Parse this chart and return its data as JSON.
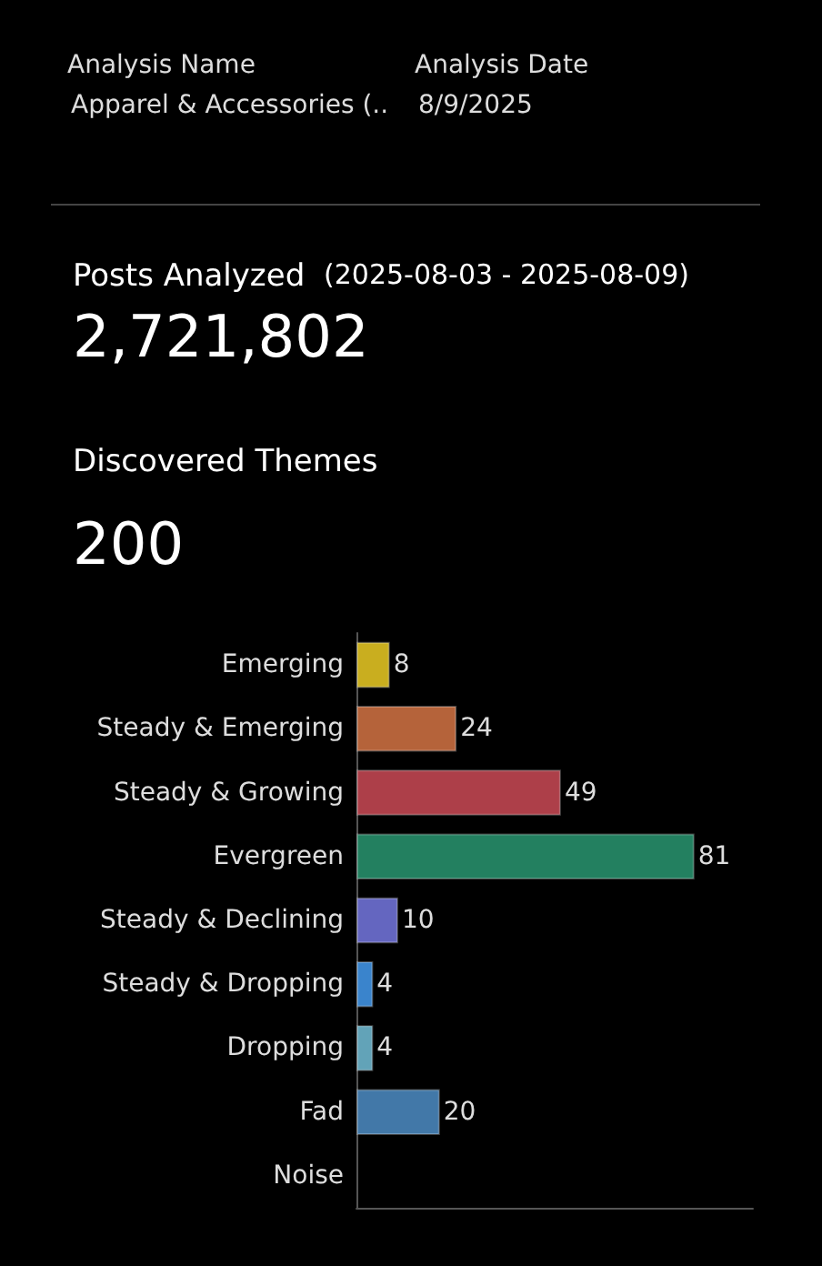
{
  "chart_data": {
    "type": "bar",
    "orientation": "horizontal",
    "annotations": [
      "Analysis Name",
      "Apparel & Accessories (..",
      "Analysis Date",
      "8/9/2025",
      "Posts Analyzed",
      "(2025-08-03 - 2025-08-09)",
      "2,721,802",
      "Discovered Themes",
      "200"
    ],
    "categories": [
      "Emerging",
      "Steady & Emerging",
      "Steady & Growing",
      "Evergreen",
      "Steady & Declining",
      "Steady & Dropping",
      "Dropping",
      "Fad",
      "Noise"
    ],
    "values": [
      8,
      24,
      49,
      81,
      10,
      4,
      4,
      20,
      null
    ],
    "colors": [
      "#c9ae1f",
      "#b5633a",
      "#ad3f49",
      "#238060",
      "#6466c0",
      "#3a84cc",
      "#62a3b8",
      "#4278a8",
      "#4278a8"
    ],
    "data_labels": true,
    "grid": false,
    "tick_labels": "y"
  }
}
